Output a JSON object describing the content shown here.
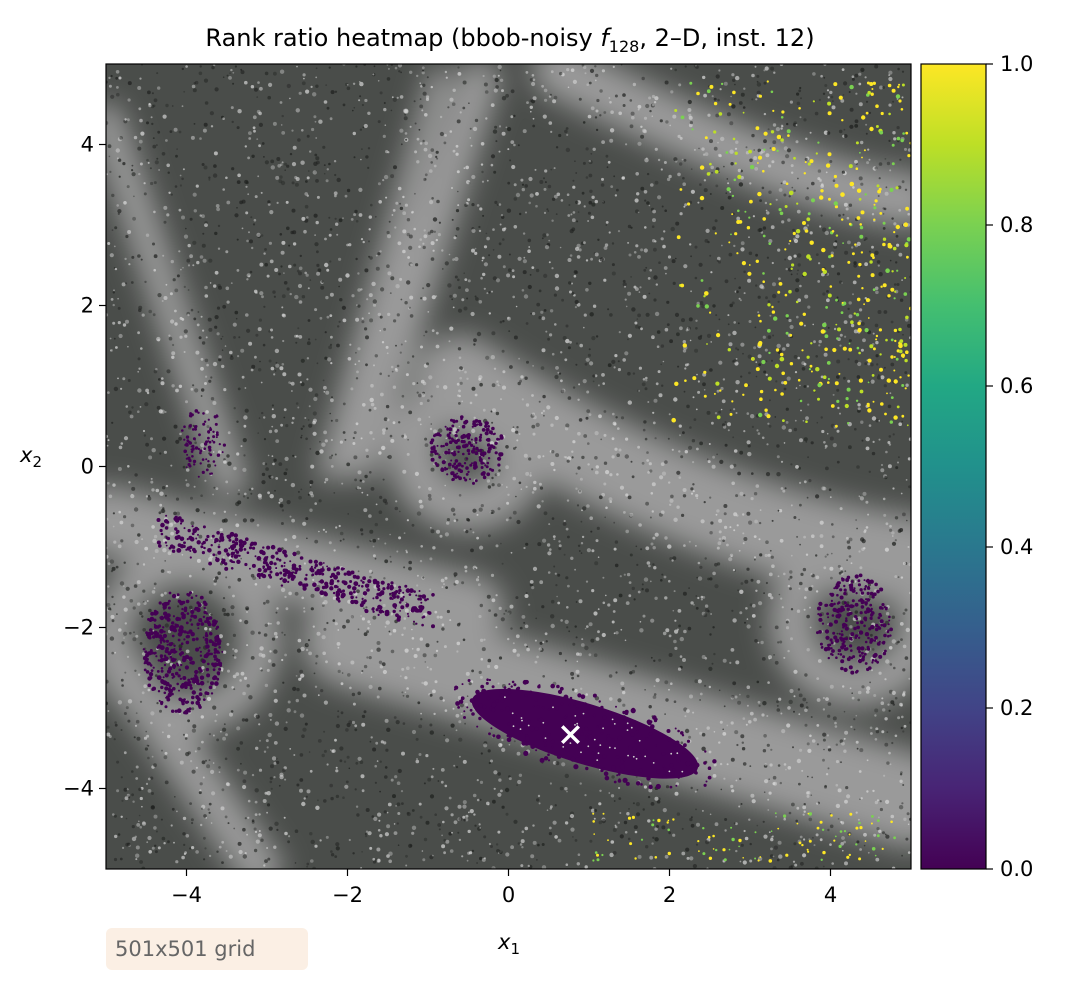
{
  "chart_data": {
    "type": "heatmap",
    "title": "Rank ratio heatmap (bbob-noisy f128, 2–D, inst. 12)",
    "title_parts": {
      "prefix": "Rank ratio heatmap (bbob-noisy ",
      "f": "f",
      "sub": "128",
      "suffix": ", 2–D, inst. 12)"
    },
    "xlabel": "x1",
    "xlabel_parts": {
      "base": "x",
      "sub": "1"
    },
    "ylabel": "x2",
    "ylabel_parts": {
      "base": "x",
      "sub": "2"
    },
    "xlim": [
      -5,
      5
    ],
    "ylim": [
      -5,
      5
    ],
    "xticks": [
      -4,
      -2,
      0,
      2,
      4
    ],
    "yticks": [
      -4,
      -2,
      0,
      2,
      4
    ],
    "xtick_labels": [
      "−4",
      "−2",
      "0",
      "2",
      "4"
    ],
    "ytick_labels": [
      "−4",
      "−2",
      "0",
      "2",
      "4"
    ],
    "colorbar": {
      "colormap": "viridis",
      "range": [
        0,
        1
      ],
      "ticks": [
        0.0,
        0.2,
        0.4,
        0.6,
        0.8,
        1.0
      ],
      "tick_labels": [
        "0.0",
        "0.2",
        "0.4",
        "0.6",
        "0.8",
        "1.0"
      ]
    },
    "grid": false,
    "low_regions": [
      {
        "center": [
          0.9,
          -3.3
        ],
        "note": "dense elongated ellipse"
      },
      {
        "center": [
          -4.05,
          -2.3
        ],
        "note": "speckled"
      },
      {
        "center": [
          4.3,
          -1.95
        ],
        "note": "speckled"
      },
      {
        "center": [
          -0.5,
          0.2
        ],
        "note": "speckled"
      },
      {
        "center": [
          -3.8,
          0.3
        ],
        "note": "speckled"
      },
      {
        "from": [
          -4.3,
          -0.8
        ],
        "to": [
          -1.0,
          -1.8
        ],
        "note": "speckled band"
      }
    ],
    "high_region": {
      "from": [
        2.0,
        4.8
      ],
      "to": [
        5.0,
        0.5
      ],
      "note": "yellow-green speckles, upper right"
    },
    "optimum_marker": {
      "x": 0.77,
      "y": -3.33,
      "symbol": "x",
      "color": "#ffffff"
    }
  },
  "annotation": {
    "grid_size": "501x501 grid"
  }
}
